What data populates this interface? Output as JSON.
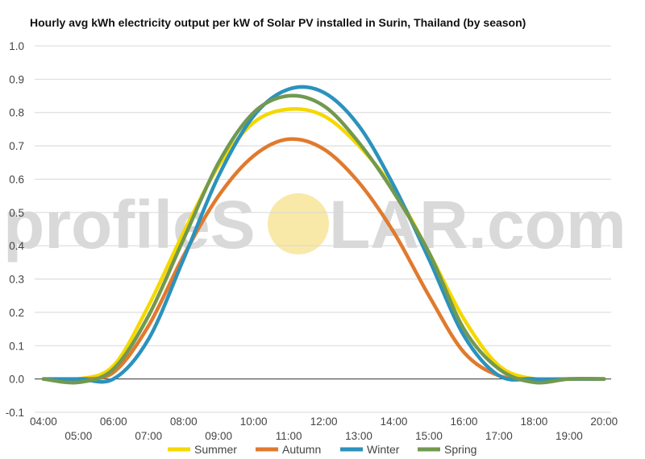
{
  "chart_data": {
    "type": "line",
    "title": "Hourly avg kWh electricity output per kW of Solar PV installed in Surin, Thailand (by season)",
    "xlabel": "",
    "ylabel": "",
    "ylim": [
      -0.1,
      1.0
    ],
    "y_ticks": [
      "-0.1",
      "0.0",
      "0.1",
      "0.2",
      "0.3",
      "0.4",
      "0.5",
      "0.6",
      "0.7",
      "0.8",
      "0.9",
      "1.0"
    ],
    "x_ticks": [
      "04:00",
      "05:00",
      "06:00",
      "07:00",
      "08:00",
      "09:00",
      "10:00",
      "11:00",
      "12:00",
      "13:00",
      "14:00",
      "15:00",
      "16:00",
      "17:00",
      "18:00",
      "19:00",
      "20:00"
    ],
    "x_hours": [
      4,
      5,
      6,
      7,
      8,
      9,
      10,
      11,
      12,
      13,
      14,
      15,
      16,
      17,
      18,
      19,
      20
    ],
    "grid": true,
    "legend_position": "bottom",
    "watermark": {
      "left": "profileS",
      "right": "LAR.com",
      "sun_color": "#f8e9a8"
    },
    "series": [
      {
        "name": "Summer",
        "color": "#f5d800",
        "values": [
          0.0,
          0.0,
          0.04,
          0.22,
          0.44,
          0.64,
          0.77,
          0.81,
          0.79,
          0.7,
          0.57,
          0.38,
          0.18,
          0.04,
          0.0,
          0.0,
          0.0
        ]
      },
      {
        "name": "Autumn",
        "color": "#e07a2e",
        "values": [
          0.0,
          0.0,
          0.02,
          0.16,
          0.37,
          0.55,
          0.67,
          0.72,
          0.69,
          0.59,
          0.44,
          0.25,
          0.08,
          0.01,
          0.0,
          0.0,
          0.0
        ]
      },
      {
        "name": "Winter",
        "color": "#2b92bd",
        "values": [
          0.0,
          0.0,
          0.0,
          0.12,
          0.36,
          0.61,
          0.79,
          0.87,
          0.86,
          0.76,
          0.58,
          0.36,
          0.13,
          0.01,
          0.0,
          0.0,
          0.0
        ]
      },
      {
        "name": "Spring",
        "color": "#72994f",
        "values": [
          0.0,
          -0.01,
          0.03,
          0.19,
          0.42,
          0.65,
          0.8,
          0.85,
          0.82,
          0.71,
          0.56,
          0.38,
          0.15,
          0.03,
          -0.01,
          0.0,
          0.0
        ]
      }
    ]
  }
}
